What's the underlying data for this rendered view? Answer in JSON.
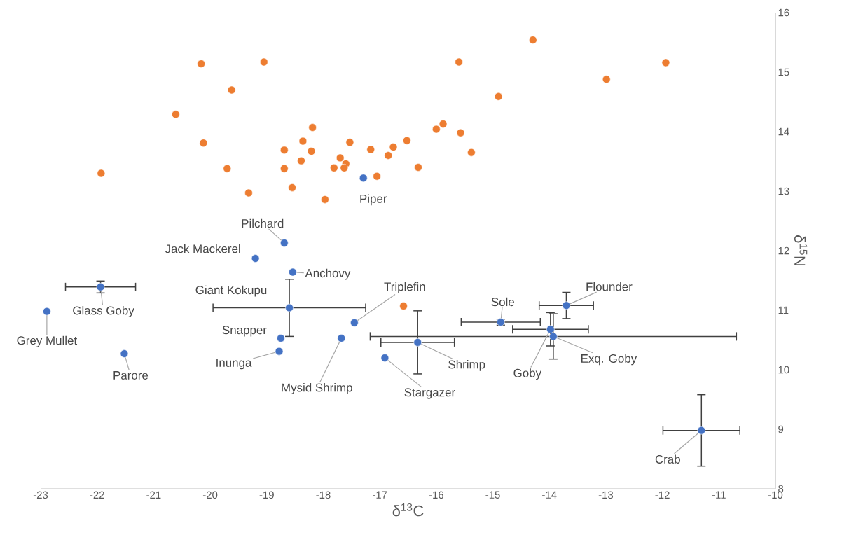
{
  "chart_data": {
    "type": "scatter",
    "xlabel": "δ$^{13}$C",
    "ylabel": "δ$^{15}$N",
    "marker": "circle",
    "xlim": [
      -23,
      -10
    ],
    "xticks": [
      -23,
      -22,
      -21,
      -20,
      -19,
      -18,
      -17,
      -16,
      -15,
      -14,
      -13,
      -12,
      -11,
      -10
    ],
    "ylim": [
      8,
      16
    ],
    "yticks": [
      8,
      9,
      10,
      11,
      12,
      13,
      14,
      15,
      16
    ],
    "series": [
      {
        "color": "#ed7d31",
        "x": [
          -21.93,
          -20.16,
          -19.05,
          -19.62,
          -20.61,
          -20.12,
          -19.7,
          -19.32,
          -18.69,
          -18.69,
          -18.55,
          -18.36,
          -18.19,
          -18.21,
          -18.39,
          -17.97,
          -17.81,
          -17.7,
          -17.6,
          -17.63,
          -17.53,
          -17.16,
          -17.05,
          -16.85,
          -16.76,
          -16.52,
          -16.32,
          -15.6,
          -14.29,
          -14.9,
          -12.99,
          -11.94,
          -16.0,
          -15.88,
          -15.57,
          -15.38,
          -16.58
        ],
        "values": [
          13.3,
          15.14,
          15.17,
          14.7,
          14.29,
          13.81,
          13.38,
          12.97,
          13.69,
          13.38,
          13.06,
          13.84,
          14.07,
          13.67,
          13.51,
          12.86,
          13.39,
          13.56,
          13.46,
          13.39,
          13.82,
          13.7,
          13.25,
          13.6,
          13.74,
          13.85,
          13.4,
          15.17,
          15.54,
          14.59,
          14.88,
          15.16,
          14.04,
          14.13,
          13.98,
          13.65,
          11.07
        ]
      },
      {
        "color": "#4472c4",
        "x": [
          -17.29,
          -18.69,
          -19.2,
          -18.54,
          -21.94,
          -22.89,
          -18.6,
          -17.45,
          -18.75,
          -17.68,
          -18.78,
          -21.52,
          -16.91,
          -16.33,
          -14.86,
          -13.98,
          -13.93,
          -13.7,
          -11.31
        ],
        "values": [
          13.22,
          12.13,
          11.87,
          11.64,
          11.39,
          10.98,
          11.04,
          10.79,
          10.53,
          10.53,
          10.31,
          10.27,
          10.2,
          10.46,
          10.8,
          10.68,
          10.56,
          11.08,
          8.98
        ],
        "errors": [
          null,
          null,
          null,
          null,
          0.1,
          null,
          0.48,
          null,
          null,
          null,
          null,
          null,
          null,
          0.53,
          0.05,
          0.28,
          0.38,
          0.22,
          0.6
        ],
        "xerrors": [
          null,
          null,
          null,
          null,
          0.62,
          null,
          1.35,
          null,
          null,
          null,
          null,
          null,
          null,
          0.65,
          0.7,
          0.67,
          3.24,
          0.48,
          0.68
        ]
      }
    ],
    "annotations": [
      {
        "text": "Piper",
        "x": -17.29,
        "y": 13.22
      },
      {
        "text": "Pilchard",
        "x": -18.69,
        "y": 12.13
      },
      {
        "text": "Jack Mackerel",
        "x": -19.2,
        "y": 11.87
      },
      {
        "text": "Anchovy",
        "x": -18.54,
        "y": 11.64
      },
      {
        "text": "Glass Goby",
        "x": -21.94,
        "y": 11.39
      },
      {
        "text": "Grey Mullet",
        "x": -22.89,
        "y": 10.98
      },
      {
        "text": "Giant Kokupu",
        "x": -18.6,
        "y": 11.04
      },
      {
        "text": "Triplefin",
        "x": -17.45,
        "y": 10.79
      },
      {
        "text": "Snapper",
        "x": -18.75,
        "y": 10.53
      },
      {
        "text": "Mysid Shrimp",
        "x": -17.68,
        "y": 10.53
      },
      {
        "text": "Inunga",
        "x": -18.78,
        "y": 10.31
      },
      {
        "text": "Parore",
        "x": -21.52,
        "y": 10.27
      },
      {
        "text": "Stargazer",
        "x": -16.91,
        "y": 10.2
      },
      {
        "text": "Shrimp",
        "x": -16.33,
        "y": 10.46
      },
      {
        "text": "Sole",
        "x": -14.86,
        "y": 10.8
      },
      {
        "text": "Goby",
        "x": -13.98,
        "y": 10.68
      },
      {
        "text": "Exq. Goby",
        "x": -13.93,
        "y": 10.56
      },
      {
        "text": "Flounder",
        "x": -13.7,
        "y": 11.08
      },
      {
        "text": "Crab",
        "x": -11.31,
        "y": 8.98
      }
    ]
  }
}
